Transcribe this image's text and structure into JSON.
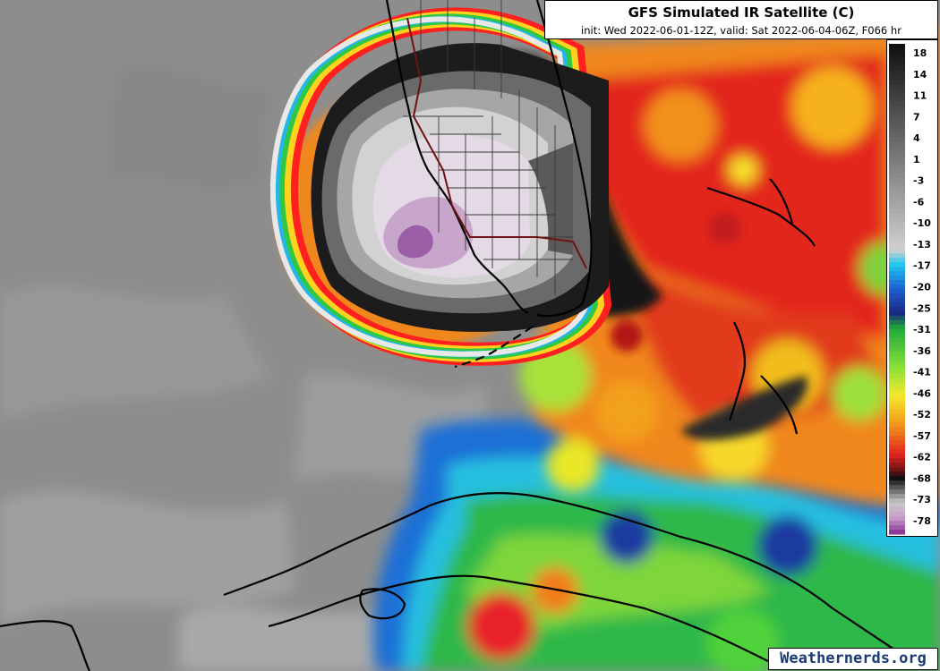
{
  "header": {
    "title": "GFS Simulated IR Satellite (C)",
    "subtitle": "init: Wed 2022-06-01-12Z, valid: Sat 2022-06-04-06Z, F066 hr"
  },
  "legend": {
    "labels": [
      "18",
      "14",
      "11",
      "7",
      "4",
      "1",
      "-3",
      "-6",
      "-10",
      "-13",
      "-17",
      "-20",
      "-25",
      "-31",
      "-36",
      "-41",
      "-46",
      "-52",
      "-57",
      "-62",
      "-68",
      "-73",
      "-78"
    ]
  },
  "watermark": "Weathernerds.org"
}
